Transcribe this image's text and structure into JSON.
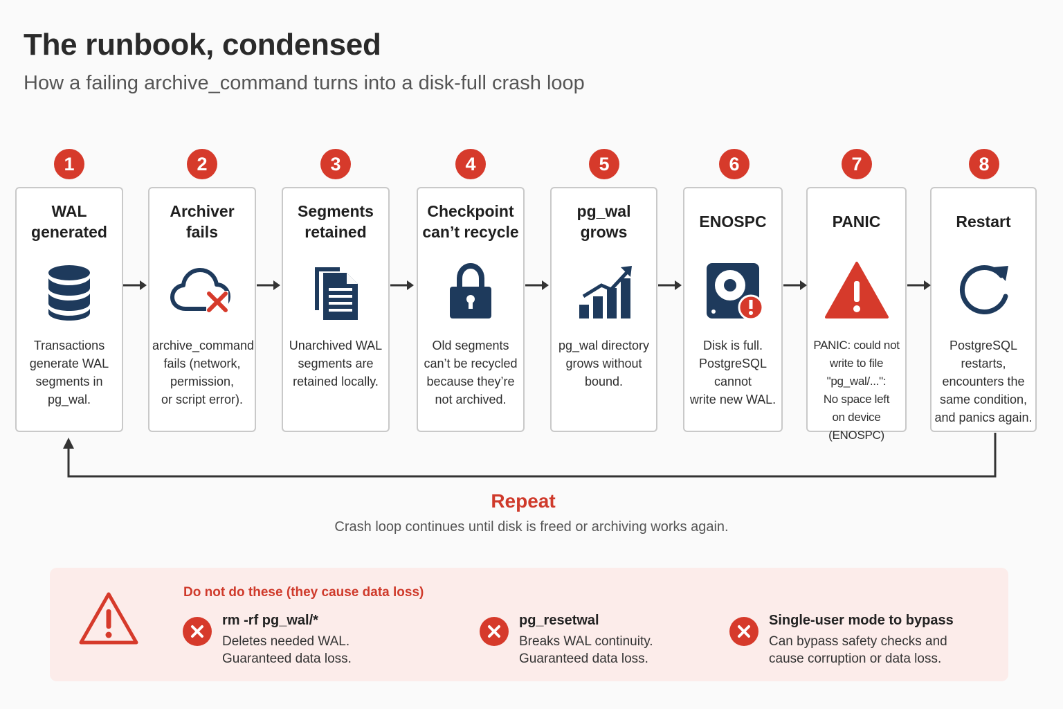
{
  "header": {
    "title": "The runbook, condensed",
    "subtitle": "How a failing archive_command turns into a disk-full crash loop"
  },
  "steps": [
    {
      "number": "1",
      "title": "WAL\ngenerated",
      "icon": "database-icon",
      "description": "Transactions\ngenerate WAL\nsegments in\npg_wal."
    },
    {
      "number": "2",
      "title": "Archiver\nfails",
      "icon": "cloud-error-icon",
      "description": "archive_command\nfails (network,\npermission,\nor script error)."
    },
    {
      "number": "3",
      "title": "Segments\nretained",
      "icon": "documents-icon",
      "description": "Unarchived WAL\nsegments are\nretained locally."
    },
    {
      "number": "4",
      "title": "Checkpoint\ncan’t recycle",
      "icon": "lock-icon",
      "description": "Old segments\ncan’t be recycled\nbecause they’re\nnot archived."
    },
    {
      "number": "5",
      "title": "pg_wal\ngrows",
      "icon": "growth-chart-icon",
      "description": "pg_wal directory\ngrows without\nbound."
    },
    {
      "number": "6",
      "title": "ENOSPC",
      "icon": "disk-full-icon",
      "description": "Disk is full.\nPostgreSQL cannot\nwrite new WAL."
    },
    {
      "number": "7",
      "title": "PANIC",
      "icon": "warning-triangle-icon",
      "description": "PANIC: could not\nwrite to file \"pg_wal/...\":\nNo space left\non device\n(ENOSPC)"
    },
    {
      "number": "8",
      "title": "Restart",
      "icon": "restart-icon",
      "description": "PostgreSQL\nrestarts,\nencounters the\nsame condition,\nand panics again."
    }
  ],
  "loop": {
    "title": "Repeat",
    "description": "Crash loop continues until disk is freed or archiving works again."
  },
  "warning": {
    "heading": "Do not do these (they cause data loss)",
    "items": [
      {
        "title": "rm -rf pg_wal/*",
        "description": "Deletes needed WAL.\nGuaranteed data loss."
      },
      {
        "title": "pg_resetwal",
        "description": "Breaks WAL continuity.\nGuaranteed data loss."
      },
      {
        "title": "Single-user mode to bypass",
        "description": "Can bypass safety checks and\ncause corruption or data loss."
      }
    ]
  },
  "colors": {
    "accent": "#d63a2b",
    "icon": "#1e3a5c",
    "box_border": "#c9c9c9",
    "warning_bg": "#fcecea"
  }
}
